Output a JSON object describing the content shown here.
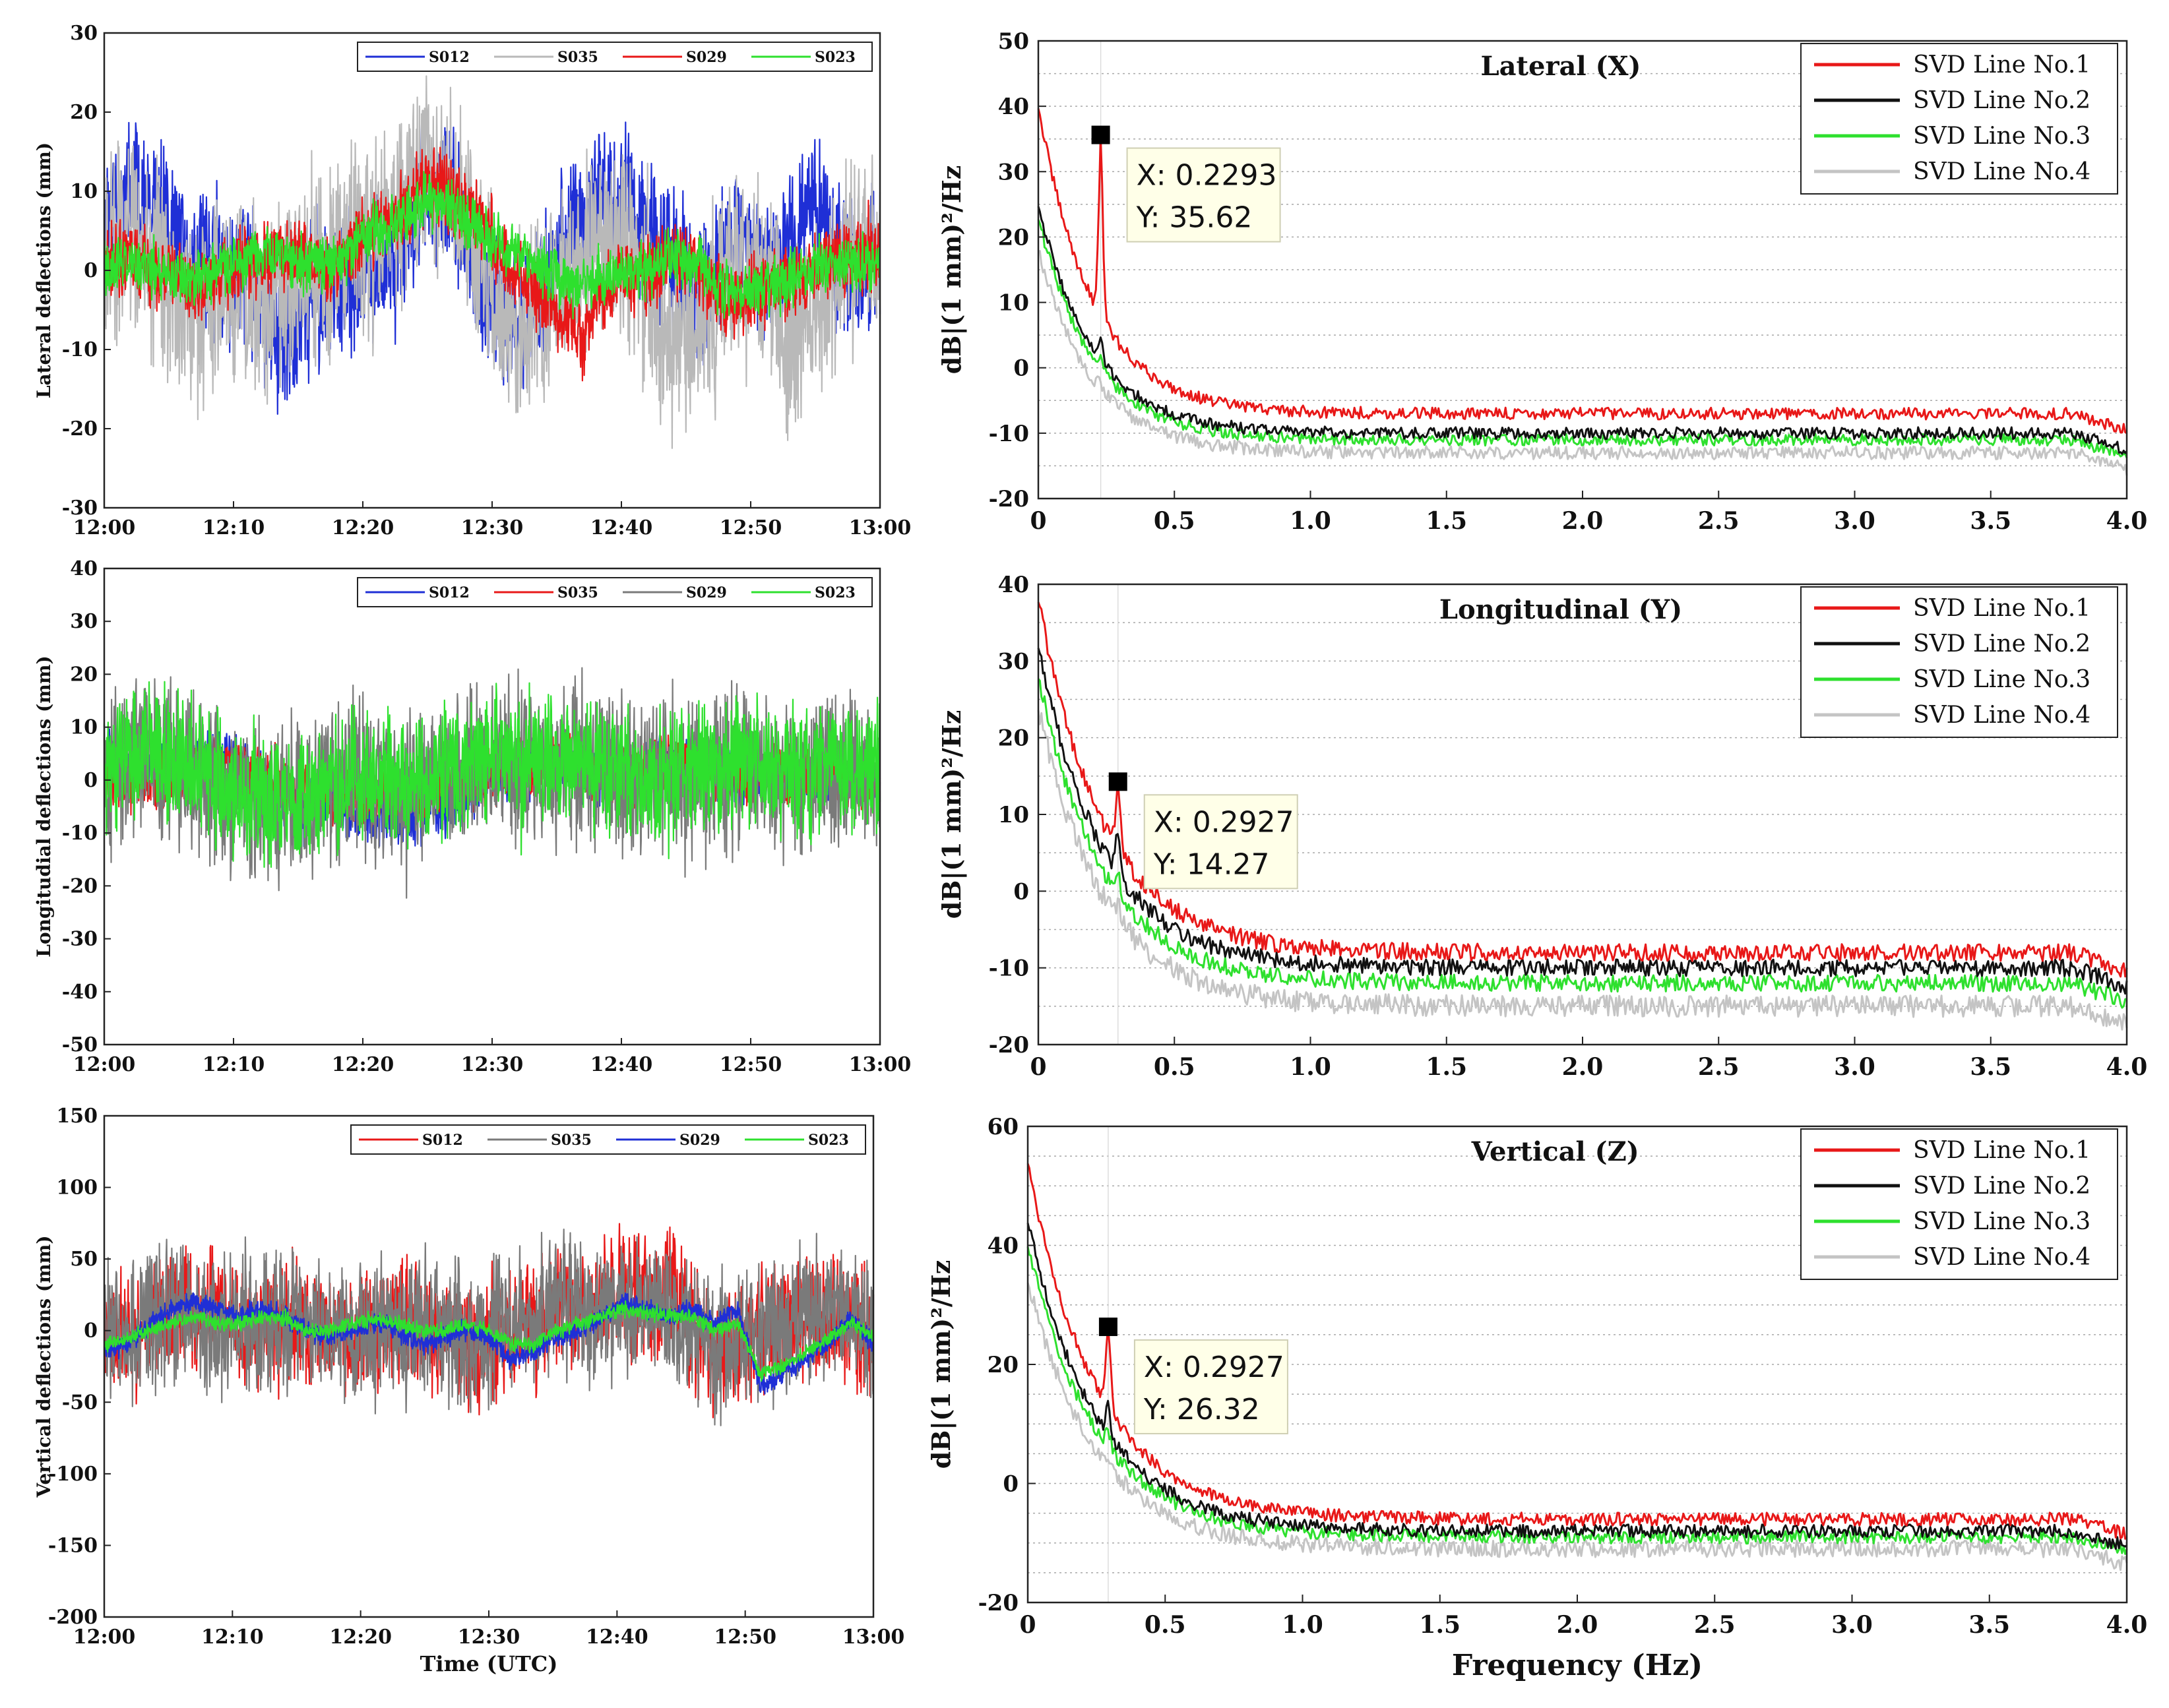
{
  "chart_data": [
    {
      "id": "ts_lateral",
      "type": "line",
      "ylabel": "Lateral deflections (mm)",
      "xlabel": "",
      "ylim": [
        -30,
        30
      ],
      "yticks": [
        30,
        20,
        10,
        0,
        -10,
        -20,
        -30
      ],
      "xticks": [
        "12:00",
        "12:10",
        "12:20",
        "12:30",
        "12:40",
        "12:50",
        "13:00"
      ],
      "legend_position": "top-right",
      "series": [
        {
          "name": "S012",
          "color": "#1f2fd6",
          "amp": 5.5,
          "noise": 3.8,
          "seed": 11,
          "values": [
            4,
            9,
            8,
            4,
            0,
            2,
            1,
            -6,
            -8,
            -5,
            -3,
            -2,
            1,
            3,
            9,
            12,
            4,
            -5,
            -7,
            -3,
            3,
            7,
            10,
            8,
            5,
            0,
            -3,
            2,
            4,
            1,
            3,
            8,
            3,
            -1,
            0
          ]
        },
        {
          "name": "S035",
          "color": "#b9b9b9",
          "amp": 7.5,
          "noise": 4.6,
          "seed": 23,
          "values": [
            3,
            5,
            2,
            -2,
            -5,
            -3,
            -1,
            -3,
            -2,
            0,
            1,
            4,
            6,
            8,
            14,
            12,
            5,
            -4,
            -8,
            -6,
            -3,
            2,
            4,
            1,
            -6,
            -9,
            -7,
            -3,
            1,
            -2,
            -9,
            -5,
            -2,
            3,
            4
          ]
        },
        {
          "name": "S029",
          "color": "#e81818",
          "amp": 2.8,
          "noise": 2.0,
          "seed": 37,
          "values": [
            1,
            2,
            0,
            -1,
            -3,
            -1,
            1,
            2,
            2,
            1,
            0,
            3,
            5,
            7,
            11,
            10,
            8,
            4,
            0,
            -3,
            -6,
            -8,
            -2,
            0,
            -1,
            2,
            0,
            -3,
            -4,
            -2,
            -1,
            0,
            1,
            2,
            2
          ]
        },
        {
          "name": "S023",
          "color": "#2ee02e",
          "amp": 2.2,
          "noise": 1.5,
          "seed": 43,
          "values": [
            0,
            1,
            0,
            -1,
            -1,
            0,
            1,
            2,
            2,
            1,
            1,
            3,
            5,
            6,
            9,
            8,
            6,
            4,
            2,
            0,
            -1,
            -2,
            -1,
            0,
            0,
            2,
            1,
            -2,
            -3,
            -2,
            -1,
            0,
            1,
            1,
            1
          ]
        }
      ]
    },
    {
      "id": "ts_longitudinal",
      "type": "line",
      "ylabel": "Longitudial deflections (mm)",
      "xlabel": "",
      "ylim": [
        -50,
        40
      ],
      "yticks": [
        40,
        30,
        20,
        10,
        0,
        -10,
        -20,
        -30,
        -40,
        -50
      ],
      "xticks": [
        "12:00",
        "12:10",
        "12:20",
        "12:30",
        "12:40",
        "12:50",
        "13:00"
      ],
      "legend_position": "top-right",
      "series": [
        {
          "name": "S012",
          "color": "#1f2fd6",
          "amp": 3.2,
          "noise": 2.0,
          "seed": 51,
          "values": [
            5,
            4,
            3,
            2,
            4,
            5,
            3,
            0,
            -3,
            -5,
            -4,
            -6,
            -7,
            -8,
            -6,
            -5,
            -3,
            0,
            2,
            4,
            3,
            2,
            1,
            0,
            2,
            3,
            4,
            2,
            0,
            -1,
            1,
            2,
            1,
            0,
            0
          ]
        },
        {
          "name": "S035",
          "color": "#e81818",
          "amp": 3.5,
          "noise": 2.0,
          "seed": 63,
          "values": [
            1,
            0,
            -1,
            0,
            2,
            3,
            2,
            1,
            -1,
            -2,
            -3,
            -4,
            -3,
            -4,
            -2,
            -1,
            0,
            1,
            2,
            3,
            3,
            2,
            1,
            0,
            2,
            3,
            3,
            2,
            1,
            0,
            1,
            2,
            1,
            0,
            0
          ]
        },
        {
          "name": "S029",
          "color": "#7a7a7a",
          "amp": 9.5,
          "noise": 5.0,
          "seed": 77,
          "values": [
            0,
            3,
            5,
            2,
            0,
            -2,
            -3,
            -4,
            -3,
            -2,
            0,
            1,
            0,
            -1,
            0,
            1,
            2,
            3,
            4,
            3,
            2,
            4,
            3,
            1,
            0,
            2,
            1,
            0,
            3,
            2,
            1,
            0,
            2,
            1,
            0
          ]
        },
        {
          "name": "S023",
          "color": "#2ee02e",
          "amp": 7.5,
          "noise": 4.5,
          "seed": 89,
          "values": [
            2,
            4,
            7,
            5,
            3,
            0,
            -3,
            -5,
            -4,
            -3,
            -1,
            0,
            1,
            -1,
            0,
            2,
            3,
            5,
            6,
            4,
            3,
            4,
            2,
            1,
            0,
            3,
            2,
            1,
            4,
            3,
            2,
            1,
            3,
            2,
            1
          ]
        }
      ]
    },
    {
      "id": "ts_vertical",
      "type": "line",
      "ylabel": "Vertical deflections (mm)",
      "xlabel": "Time (UTC)",
      "ylim": [
        -200,
        150
      ],
      "yticks": [
        150,
        100,
        50,
        0,
        -50,
        -100,
        -150,
        -200
      ],
      "xticks": [
        "12:00",
        "12:10",
        "12:20",
        "12:30",
        "12:40",
        "12:50",
        "13:00"
      ],
      "legend_position": "top-right",
      "series": [
        {
          "name": "S012",
          "color": "#e81818",
          "amp": 26,
          "noise": 16,
          "seed": 97,
          "values": [
            0,
            -10,
            5,
            10,
            15,
            10,
            0,
            5,
            10,
            5,
            0,
            -5,
            5,
            10,
            5,
            0,
            -10,
            -5,
            0,
            10,
            15,
            10,
            25,
            30,
            20,
            30,
            5,
            -20,
            -10,
            0,
            5,
            10,
            15,
            5,
            0
          ]
        },
        {
          "name": "S035",
          "color": "#7a7a7a",
          "amp": 30,
          "noise": 17,
          "seed": 109,
          "values": [
            0,
            -5,
            10,
            15,
            10,
            5,
            0,
            5,
            10,
            5,
            0,
            -5,
            5,
            10,
            5,
            0,
            -10,
            -5,
            5,
            10,
            20,
            15,
            15,
            20,
            10,
            15,
            0,
            -15,
            -5,
            0,
            5,
            10,
            10,
            5,
            0
          ]
        },
        {
          "name": "S029",
          "color": "#1f2fd6",
          "amp": 4,
          "noise": 3,
          "seed": 121,
          "values": [
            -15,
            -10,
            5,
            15,
            20,
            15,
            10,
            15,
            10,
            0,
            -5,
            0,
            5,
            0,
            -10,
            -5,
            0,
            -5,
            -20,
            -15,
            -5,
            0,
            10,
            20,
            15,
            10,
            15,
            5,
            15,
            -40,
            -30,
            -20,
            -10,
            10,
            -10
          ]
        },
        {
          "name": "S023",
          "color": "#2ee02e",
          "amp": 3,
          "noise": 2,
          "seed": 131,
          "values": [
            -10,
            -5,
            0,
            5,
            10,
            5,
            5,
            10,
            8,
            0,
            0,
            5,
            8,
            5,
            0,
            0,
            5,
            0,
            -10,
            -10,
            0,
            5,
            10,
            15,
            12,
            10,
            10,
            0,
            5,
            -30,
            -25,
            -15,
            -5,
            5,
            -5
          ]
        }
      ]
    },
    {
      "id": "psd_lateral",
      "type": "line",
      "title": "Lateral (X)",
      "ylabel": "dB|(1 mm)²/Hz",
      "xlabel": "",
      "xlim": [
        0,
        4
      ],
      "ylim": [
        -20,
        50
      ],
      "yticks": [
        50,
        40,
        30,
        20,
        10,
        0,
        -10,
        -20
      ],
      "xticks": [
        "0",
        "0.5",
        "1.0",
        "1.5",
        "2.0",
        "2.5",
        "3.0",
        "3.5",
        "4.0"
      ],
      "legend_position": "top-right",
      "datatip": {
        "x": 0.2293,
        "y": 35.62,
        "x_label": "X: 0.2293",
        "y_label": "Y: 35.62"
      },
      "series": [
        {
          "name": "SVD Line No.1",
          "color": "#e81818",
          "start": 40,
          "end": -7,
          "decay": 5.0,
          "peak_height": 24,
          "noise": 0.9,
          "seed": 201
        },
        {
          "name": "SVD Line No.2",
          "color": "#111111",
          "start": 25,
          "end": -10,
          "decay": 5.0,
          "peak_height": 3,
          "noise": 0.9,
          "seed": 211
        },
        {
          "name": "SVD Line No.3",
          "color": "#2ee02e",
          "start": 23,
          "end": -11,
          "decay": 5.0,
          "peak_height": 2,
          "noise": 0.9,
          "seed": 223
        },
        {
          "name": "SVD Line No.4",
          "color": "#c4c4c4",
          "start": 18,
          "end": -13,
          "decay": 5.0,
          "peak_height": 1,
          "noise": 1.0,
          "seed": 227
        }
      ]
    },
    {
      "id": "psd_longitudinal",
      "type": "line",
      "title": "Longitudinal (Y)",
      "ylabel": "dB|(1 mm)²/Hz",
      "xlabel": "",
      "xlim": [
        0,
        4
      ],
      "ylim": [
        -20,
        40
      ],
      "yticks": [
        40,
        30,
        20,
        10,
        0,
        -10,
        -20
      ],
      "xticks": [
        "0",
        "0.5",
        "1.0",
        "1.5",
        "2.0",
        "2.5",
        "3.0",
        "3.5",
        "4.0"
      ],
      "legend_position": "top-right",
      "datatip": {
        "x": 0.2927,
        "y": 14.27,
        "x_label": "X: 0.2927",
        "y_label": "Y: 14.27"
      },
      "series": [
        {
          "name": "SVD Line No.1",
          "color": "#e81818",
          "start": 38,
          "end": -8,
          "decay": 4.2,
          "peak_height": 9,
          "noise": 1.1,
          "seed": 301
        },
        {
          "name": "SVD Line No.2",
          "color": "#111111",
          "start": 32,
          "end": -10,
          "decay": 4.2,
          "peak_height": 5,
          "noise": 1.1,
          "seed": 311
        },
        {
          "name": "SVD Line No.3",
          "color": "#2ee02e",
          "start": 28,
          "end": -12,
          "decay": 4.2,
          "peak_height": 3,
          "noise": 1.1,
          "seed": 313
        },
        {
          "name": "SVD Line No.4",
          "color": "#c4c4c4",
          "start": 24,
          "end": -15,
          "decay": 4.2,
          "peak_height": 2,
          "noise": 1.4,
          "seed": 317
        }
      ]
    },
    {
      "id": "psd_vertical",
      "type": "line",
      "title": "Vertical (Z)",
      "ylabel": "dB|(1 mm)²/Hz",
      "xlabel": "Frequency (Hz)",
      "xlim": [
        0,
        4
      ],
      "ylim": [
        -20,
        60
      ],
      "yticks": [
        60,
        40,
        20,
        0,
        -20
      ],
      "xticks": [
        "0",
        "0.5",
        "1.0",
        "1.5",
        "2.0",
        "2.5",
        "3.0",
        "3.5",
        "4.0"
      ],
      "legend_position": "top-right",
      "datatip": {
        "x": 0.2927,
        "y": 26.32,
        "x_label": "X: 0.2927",
        "y_label": "Y: 26.32"
      },
      "series": [
        {
          "name": "SVD Line No.1",
          "color": "#e81818",
          "start": 54,
          "end": -6,
          "decay": 4.0,
          "peak_height": 14,
          "noise": 1.1,
          "seed": 401
        },
        {
          "name": "SVD Line No.2",
          "color": "#111111",
          "start": 44,
          "end": -8,
          "decay": 4.0,
          "peak_height": 5,
          "noise": 1.1,
          "seed": 409
        },
        {
          "name": "SVD Line No.3",
          "color": "#2ee02e",
          "start": 40,
          "end": -9,
          "decay": 4.0,
          "peak_height": 3,
          "noise": 1.1,
          "seed": 419
        },
        {
          "name": "SVD Line No.4",
          "color": "#c4c4c4",
          "start": 34,
          "end": -11,
          "decay": 4.0,
          "peak_height": 2,
          "noise": 1.4,
          "seed": 421
        }
      ]
    }
  ]
}
